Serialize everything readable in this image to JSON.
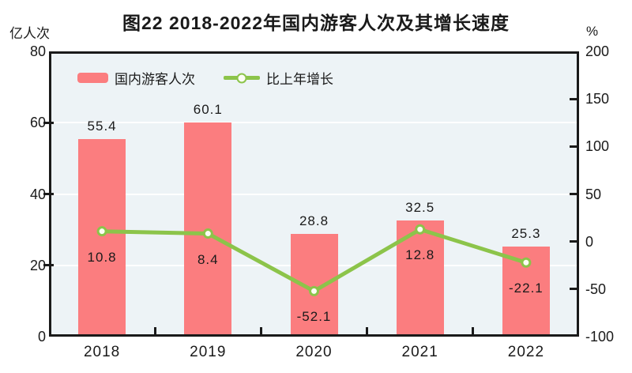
{
  "chart_data": {
    "type": "combo_bar_line",
    "title": "图22  2018-2022年国内游客人次及其增长速度",
    "categories": [
      "2018",
      "2019",
      "2020",
      "2021",
      "2022"
    ],
    "series": [
      {
        "name": "国内游客人次",
        "type": "bar",
        "axis": "left",
        "values": [
          55.4,
          60.1,
          28.8,
          32.5,
          25.3
        ],
        "color": "#fb7d7f"
      },
      {
        "name": "比上年增长",
        "type": "line",
        "axis": "right",
        "values": [
          10.8,
          8.4,
          -52.1,
          12.8,
          -22.1
        ],
        "color": "#8cc44a",
        "marker_fill": "#fcfdf4"
      }
    ],
    "left_axis": {
      "unit": "亿人次",
      "min": 0,
      "max": 80,
      "ticks": [
        80,
        60,
        40,
        20,
        0
      ]
    },
    "right_axis": {
      "unit": "%",
      "min": -100,
      "max": 200,
      "ticks": [
        200,
        150,
        100,
        50,
        0,
        -50,
        -100
      ]
    },
    "grid": {
      "show": true,
      "color": "#ffffff",
      "at_left_values": [
        60,
        40,
        20
      ]
    },
    "colors": {
      "plot_bg": "#edf3f6",
      "axis": "#1a1a1a",
      "bar_label": "#1a1a1a",
      "growth_label": "#1a1a1a"
    },
    "legend_position": "top-left"
  }
}
